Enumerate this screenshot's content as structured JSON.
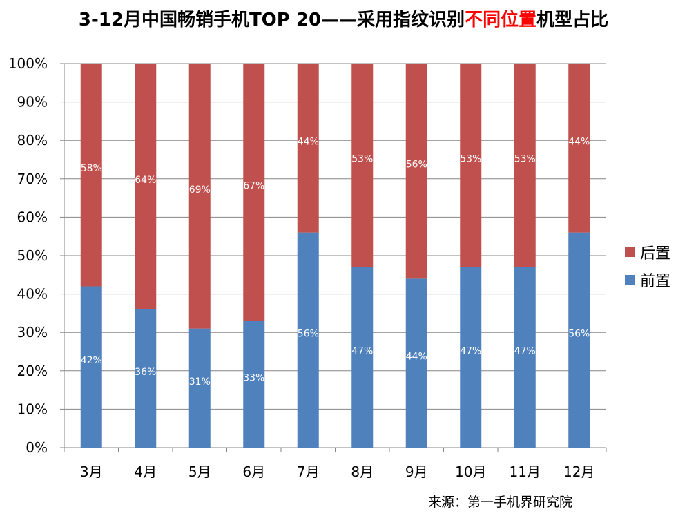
{
  "title": {
    "part1": "3-12月中国畅销手机TOP 20——采用指纹识别",
    "highlight": "不同位置",
    "part2": "机型占比"
  },
  "source": "来源：第一手机界研究院",
  "colors": {
    "rear": "#c0504d",
    "front": "#4f81bd",
    "highlight": "#ff0000"
  },
  "chart_data": {
    "type": "bar",
    "stacked": true,
    "percent_axis": true,
    "categories": [
      "3月",
      "4月",
      "5月",
      "6月",
      "7月",
      "8月",
      "9月",
      "10月",
      "11月",
      "12月"
    ],
    "series": [
      {
        "name": "前置",
        "values": [
          42,
          36,
          31,
          33,
          56,
          47,
          44,
          47,
          47,
          56
        ],
        "labels": [
          "42%",
          "36%",
          "31%",
          "33%",
          "56%",
          "47%",
          "44%",
          "47%",
          "47%",
          "56%"
        ],
        "color": "#4f81bd"
      },
      {
        "name": "后置",
        "values": [
          58,
          64,
          69,
          67,
          44,
          53,
          56,
          53,
          53,
          44
        ],
        "labels": [
          "58%",
          "64%",
          "69%",
          "67%",
          "44%",
          "53%",
          "56%",
          "53%",
          "53%",
          "44%"
        ],
        "color": "#c0504d"
      }
    ],
    "ylim": [
      0,
      100
    ],
    "yticks": [
      "0%",
      "10%",
      "20%",
      "30%",
      "40%",
      "50%",
      "60%",
      "70%",
      "80%",
      "90%",
      "100%"
    ],
    "grid": true,
    "legend": {
      "position": "right",
      "items": [
        "后置",
        "前置"
      ]
    }
  }
}
